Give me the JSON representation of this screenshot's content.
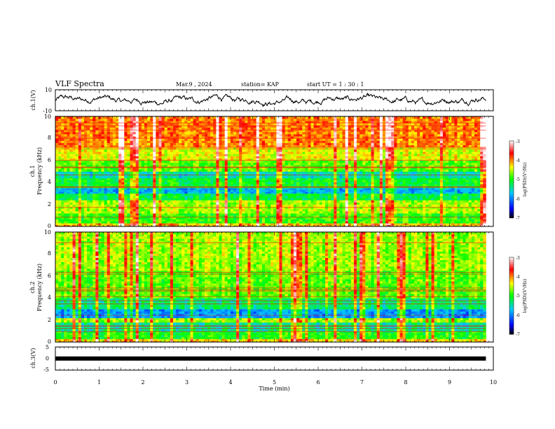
{
  "header": {
    "title": "VLF Spectra",
    "date": "Mar.9  , 2024",
    "station": "station= KAP",
    "start": "start  UT  =   1 : 30 : 1"
  },
  "chart_data": [
    {
      "id": "ch1-voltage",
      "type": "line",
      "ylabel": "ch.1(V)",
      "ylim": [
        -10,
        10
      ],
      "yticks": [
        "10",
        "-10"
      ],
      "xlim": [
        0,
        10
      ],
      "level_range": [
        -6,
        7
      ]
    },
    {
      "id": "ch1-spectrogram",
      "type": "heatmap",
      "ylabel_channel": "ch.1",
      "ylabel": "Frequency  (kHz)",
      "ylim": [
        0,
        10
      ],
      "yticks": [
        "0",
        "2",
        "4",
        "6",
        "8",
        "10"
      ],
      "xlim": [
        0,
        10
      ],
      "data_end_min": 9.83,
      "colorbar": {
        "label": "log(PSD)(V²/Hz)",
        "range": [
          -7,
          -3
        ],
        "ticks": [
          "-3",
          "-4",
          "-5",
          "-6",
          "-7"
        ]
      },
      "bands": [
        {
          "from": 0.0,
          "to": 0.3,
          "level": -4.2
        },
        {
          "from": 0.3,
          "to": 1.2,
          "level": -4.9
        },
        {
          "from": 1.2,
          "to": 2.4,
          "level": -4.6
        },
        {
          "from": 2.4,
          "to": 3.0,
          "level": -5.2
        },
        {
          "from": 3.0,
          "to": 3.5,
          "level": -5.8
        },
        {
          "from": 3.5,
          "to": 4.4,
          "level": -5.1
        },
        {
          "from": 4.4,
          "to": 5.0,
          "level": -5.5
        },
        {
          "from": 5.0,
          "to": 6.0,
          "level": -4.8
        },
        {
          "from": 6.0,
          "to": 7.2,
          "level": -4.4
        },
        {
          "from": 7.2,
          "to": 10.0,
          "level": -4.0
        }
      ]
    },
    {
      "id": "ch2-spectrogram",
      "type": "heatmap",
      "ylabel_channel": "ch.2",
      "ylabel": "Frequency  (kHz)",
      "ylim": [
        0,
        10
      ],
      "yticks": [
        "0",
        "2",
        "4",
        "6",
        "8",
        "10"
      ],
      "xlim": [
        0,
        10
      ],
      "data_end_min": 9.83,
      "colorbar": {
        "label": "log(PSD)(V²/Hz)",
        "range": [
          -7,
          -3
        ],
        "ticks": [
          "-3",
          "-4",
          "-5",
          "-6",
          "-7"
        ]
      },
      "bands": [
        {
          "from": 0.0,
          "to": 0.3,
          "level": -4.3
        },
        {
          "from": 0.3,
          "to": 1.0,
          "level": -5.0
        },
        {
          "from": 1.0,
          "to": 1.8,
          "level": -5.4
        },
        {
          "from": 1.8,
          "to": 2.2,
          "level": -4.6
        },
        {
          "from": 2.2,
          "to": 3.0,
          "level": -5.9
        },
        {
          "from": 3.0,
          "to": 4.0,
          "level": -5.3
        },
        {
          "from": 4.0,
          "to": 6.5,
          "level": -4.8
        },
        {
          "from": 6.5,
          "to": 10.0,
          "level": -4.6
        }
      ]
    },
    {
      "id": "ch3-voltage",
      "type": "line",
      "ylabel": "ch.3(V)",
      "ylim": [
        -5,
        5
      ],
      "yticks": [
        "5",
        "0",
        "-5"
      ],
      "xlim": [
        0,
        10
      ],
      "level": 0
    }
  ],
  "xaxis": {
    "label": "Time  (min)",
    "ticks": [
      "0",
      "1",
      "2",
      "3",
      "4",
      "5",
      "6",
      "7",
      "8",
      "9",
      "10"
    ]
  }
}
